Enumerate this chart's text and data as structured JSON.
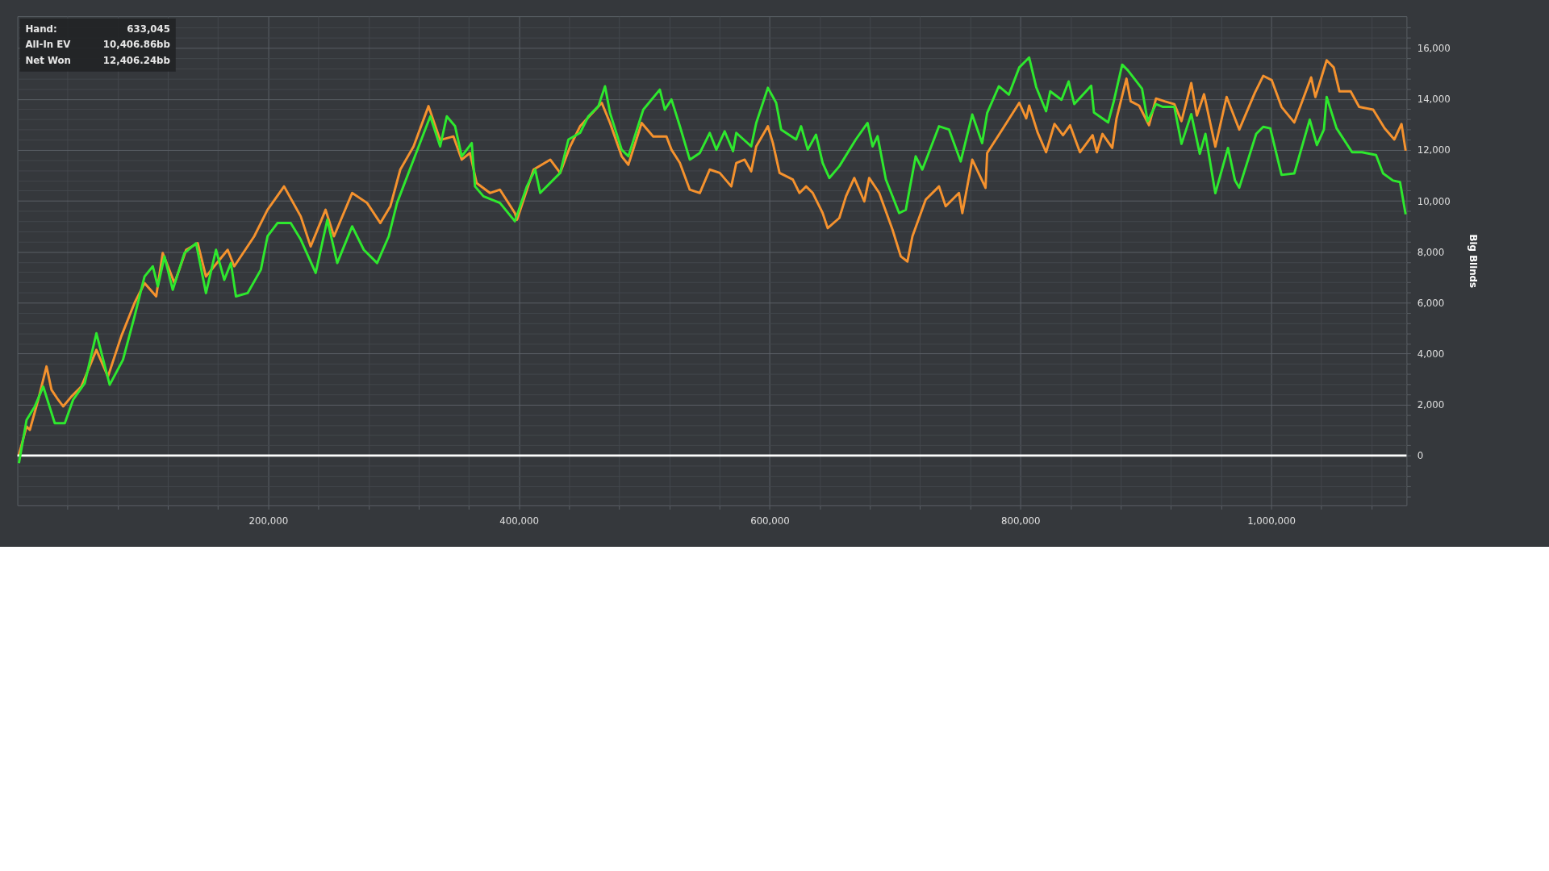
{
  "chart_data": {
    "type": "line",
    "ylabel": "Big Blinds",
    "xlim": [
      0,
      1108000
    ],
    "ylim": [
      -1950,
      17250
    ],
    "grid": true,
    "marker": "none",
    "line_style": "solid",
    "xticks": [
      {
        "value": 40000,
        "label": null
      },
      {
        "value": 80000,
        "label": null
      },
      {
        "value": 120000,
        "label": null
      },
      {
        "value": 160000,
        "label": null
      },
      {
        "value": 200000,
        "label": "200,000"
      },
      {
        "value": 240000,
        "label": null
      },
      {
        "value": 280000,
        "label": null
      },
      {
        "value": 320000,
        "label": null
      },
      {
        "value": 360000,
        "label": null
      },
      {
        "value": 400000,
        "label": "400,000"
      },
      {
        "value": 440000,
        "label": null
      },
      {
        "value": 480000,
        "label": null
      },
      {
        "value": 520000,
        "label": null
      },
      {
        "value": 560000,
        "label": null
      },
      {
        "value": 600000,
        "label": "600,000"
      },
      {
        "value": 640000,
        "label": null
      },
      {
        "value": 680000,
        "label": null
      },
      {
        "value": 720000,
        "label": null
      },
      {
        "value": 760000,
        "label": null
      },
      {
        "value": 800000,
        "label": "800,000"
      },
      {
        "value": 840000,
        "label": null
      },
      {
        "value": 880000,
        "label": null
      },
      {
        "value": 920000,
        "label": null
      },
      {
        "value": 960000,
        "label": null
      },
      {
        "value": 1000000,
        "label": "1,000,000"
      },
      {
        "value": 1040000,
        "label": null
      },
      {
        "value": 1080000,
        "label": null
      }
    ],
    "yticks": [
      {
        "value": -1600,
        "label": null
      },
      {
        "value": -1200,
        "label": null
      },
      {
        "value": -800,
        "label": null
      },
      {
        "value": -400,
        "label": null
      },
      0,
      {
        "value": 400,
        "label": null
      },
      {
        "value": 800,
        "label": null
      },
      {
        "value": 1200,
        "label": null
      },
      {
        "value": 1600,
        "label": null
      },
      {
        "value": 2000,
        "label": "2,000"
      },
      {
        "value": 2400,
        "label": null
      },
      {
        "value": 2800,
        "label": null
      },
      {
        "value": 3200,
        "label": null
      },
      {
        "value": 3600,
        "label": null
      },
      {
        "value": 4000,
        "label": "4,000"
      },
      {
        "value": 4400,
        "label": null
      },
      {
        "value": 4800,
        "label": null
      },
      {
        "value": 5200,
        "label": null
      },
      {
        "value": 5600,
        "label": null
      },
      {
        "value": 6000,
        "label": "6,000"
      },
      {
        "value": 6400,
        "label": null
      },
      {
        "value": 6800,
        "label": null
      },
      {
        "value": 7200,
        "label": null
      },
      {
        "value": 7600,
        "label": null
      },
      {
        "value": 8000,
        "label": "8,000"
      },
      {
        "value": 8400,
        "label": null
      },
      {
        "value": 8800,
        "label": null
      },
      {
        "value": 9200,
        "label": null
      },
      {
        "value": 9600,
        "label": null
      },
      {
        "value": 10000,
        "label": "10,000"
      },
      {
        "value": 10400,
        "label": null
      },
      {
        "value": 10800,
        "label": null
      },
      {
        "value": 11200,
        "label": null
      },
      {
        "value": 11600,
        "label": null
      },
      {
        "value": 12000,
        "label": "12,000"
      },
      {
        "value": 12400,
        "label": null
      },
      {
        "value": 12800,
        "label": null
      },
      {
        "value": 13200,
        "label": null
      },
      {
        "value": 13600,
        "label": null
      },
      {
        "value": 14000,
        "label": "14,000"
      },
      {
        "value": 14400,
        "label": null
      },
      {
        "value": 14800,
        "label": null
      },
      {
        "value": 15200,
        "label": null
      },
      {
        "value": 15600,
        "label": null
      },
      {
        "value": 16000,
        "label": "16,000"
      },
      {
        "value": 16400,
        "label": null
      },
      {
        "value": 16800,
        "label": null
      }
    ],
    "ref_lines": [
      {
        "axis": "y",
        "value": 0,
        "color": "#ffffff"
      }
    ],
    "annotations": [
      "Hand:",
      "633,045",
      "All-In EV",
      "10,406.86bb",
      "Net Won",
      "12,406.24bb"
    ],
    "series": [
      {
        "color": "#f5922e",
        "x": [
          1000,
          7300,
          9900,
          16600,
          23200,
          27200,
          32500,
          36500,
          43100,
          51000,
          63000,
          72200,
          82800,
          93400,
          101400,
          110700,
          115900,
          125300,
          134600,
          143800,
          150400,
          167700,
          172970,
          188900,
          199500,
          212700,
          226000,
          233900,
          245800,
          252500,
          267000,
          278900,
          289500,
          297500,
          305400,
          316000,
          327900,
          337200,
          347800,
          354400,
          361000,
          366300,
          376900,
          384900,
          396800,
          398500,
          411700,
          425000,
          432900,
          440900,
          448800,
          466100,
          472700,
          482000,
          487300,
          497900,
          507100,
          517700,
          521700,
          528400,
          536300,
          544300,
          552200,
          560200,
          569400,
          573400,
          580100,
          585300,
          589300,
          598600,
          602600,
          607900,
          618500,
          623800,
          629100,
          634400,
          642300,
          646300,
          655600,
          660900,
          667500,
          675500,
          679400,
          687400,
          698000,
          704600,
          709900,
          713900,
          724500,
          735100,
          740400,
          751000,
          753700,
          761600,
          772200,
          773500,
          785500,
          799100,
          804700,
          807000,
          813700,
          820500,
          827200,
          834000,
          839600,
          847500,
          857600,
          861000,
          865500,
          873300,
          876700,
          884600,
          888000,
          894700,
          902600,
          908200,
          915000,
          922800,
          928500,
          936300,
          940800,
          946500,
          955500,
          964500,
          974600,
          987000,
          993700,
          1000500,
          1008300,
          1018500,
          1031900,
          1035300,
          1044300,
          1049900,
          1054500,
          1063400,
          1070200,
          1081400,
          1090500,
          1098300,
          1104000,
          1107300
        ],
        "values": [
          0,
          1140,
          1010,
          2190,
          3500,
          2580,
          2190,
          1930,
          2320,
          2710,
          4150,
          3100,
          4680,
          5990,
          6770,
          6250,
          7950,
          6770,
          8080,
          8340,
          7030,
          8080,
          7430,
          8610,
          9650,
          10570,
          9390,
          8210,
          9650,
          8610,
          10310,
          9920,
          9130,
          9790,
          11230,
          12140,
          13720,
          12390,
          12530,
          11620,
          11880,
          10700,
          10310,
          10440,
          9520,
          9260,
          11230,
          11620,
          11100,
          12140,
          12930,
          13850,
          13060,
          11750,
          11420,
          13060,
          12530,
          12530,
          12010,
          11490,
          10440,
          10310,
          11230,
          11100,
          10570,
          11490,
          11620,
          11160,
          12140,
          12930,
          12270,
          11100,
          10840,
          10310,
          10570,
          10310,
          9520,
          8930,
          9330,
          10180,
          10900,
          9980,
          10900,
          10310,
          8870,
          7820,
          7620,
          8610,
          10050,
          10570,
          9790,
          10310,
          9520,
          11620,
          10510,
          11880,
          12800,
          13850,
          13240,
          13740,
          12690,
          11910,
          13020,
          12580,
          12970,
          11910,
          12580,
          11910,
          12630,
          12080,
          13240,
          14800,
          13910,
          13740,
          12970,
          14020,
          13910,
          13800,
          13130,
          14630,
          13350,
          14190,
          12130,
          14080,
          12800,
          14240,
          14910,
          14740,
          13690,
          13080,
          14850,
          14080,
          15520,
          15240,
          14300,
          14300,
          13690,
          13580,
          12850,
          12410,
          13020,
          11970
        ]
      },
      {
        "color": "#2ee82e",
        "x": [
          1200,
          7300,
          13900,
          20600,
          29800,
          37800,
          44400,
          53700,
          63000,
          73600,
          84200,
          93400,
          101400,
          108000,
          112000,
          117300,
          123900,
          133200,
          142500,
          150400,
          158400,
          165000,
          170300,
          174300,
          183600,
          194200,
          199500,
          207400,
          218000,
          226000,
          237900,
          247200,
          255100,
          267000,
          276300,
          286900,
          296200,
          302800,
          316000,
          329300,
          337200,
          342500,
          349100,
          354400,
          362400,
          365000,
          371700,
          384900,
          396800,
          406400,
          413000,
          417000,
          432900,
          439500,
          448800,
          455400,
          463400,
          468700,
          472700,
          482000,
          487300,
          499200,
          512400,
          516400,
          521700,
          528400,
          536300,
          544300,
          552200,
          557500,
          564100,
          570800,
          573400,
          585300,
          589300,
          598600,
          605200,
          609200,
          621100,
          625100,
          630400,
          637000,
          642300,
          647600,
          655600,
          668700,
          678100,
          682100,
          686100,
          692700,
          703300,
          708600,
          716500,
          721800,
          735100,
          743100,
          752400,
          761600,
          769500,
          773500,
          782800,
          790800,
          799100,
          807000,
          812600,
          820500,
          823800,
          832800,
          838500,
          843000,
          856500,
          858700,
          870000,
          874500,
          881200,
          885700,
          897000,
          901500,
          908200,
          913800,
          922800,
          928500,
          936300,
          943100,
          947600,
          955500,
          965600,
          971200,
          974600,
          988100,
          993700,
          999300,
          1008300,
          1018500,
          1030800,
          1036500,
          1042100,
          1044300,
          1052200,
          1064600,
          1072500,
          1083700,
          1089300,
          1097200,
          1102800,
          1107300
        ],
        "values": [
          -300,
          1400,
          1930,
          2710,
          1270,
          1270,
          2190,
          2840,
          4800,
          2780,
          3760,
          5460,
          7030,
          7430,
          6640,
          7820,
          6510,
          7950,
          8340,
          6380,
          8080,
          6900,
          7560,
          6250,
          6380,
          7300,
          8610,
          9130,
          9130,
          8480,
          7170,
          9260,
          7560,
          9000,
          8080,
          7560,
          8610,
          9920,
          11620,
          13320,
          12140,
          13320,
          12930,
          11750,
          12270,
          10570,
          10180,
          9920,
          9200,
          10570,
          11230,
          10310,
          11100,
          12410,
          12670,
          13320,
          13720,
          14500,
          13450,
          12010,
          11750,
          13580,
          14370,
          13580,
          13980,
          12930,
          11620,
          11880,
          12670,
          12010,
          12730,
          11950,
          12670,
          12140,
          13060,
          14440,
          13850,
          12800,
          12410,
          12930,
          12010,
          12600,
          11490,
          10900,
          11360,
          12410,
          13060,
          12140,
          12540,
          10840,
          9520,
          9650,
          11750,
          11230,
          12930,
          12800,
          11550,
          13390,
          12270,
          13450,
          14500,
          14170,
          15240,
          15630,
          14470,
          13520,
          14300,
          13970,
          14690,
          13800,
          14520,
          13470,
          13080,
          13910,
          15350,
          15130,
          14410,
          13130,
          13800,
          13690,
          13690,
          12240,
          13410,
          11850,
          12630,
          10300,
          12080,
          10800,
          10520,
          12630,
          12910,
          12850,
          11020,
          11080,
          13190,
          12190,
          12800,
          14080,
          12850,
          11910,
          11910,
          11800,
          11080,
          10800,
          10740,
          9470
        ]
      }
    ]
  }
}
